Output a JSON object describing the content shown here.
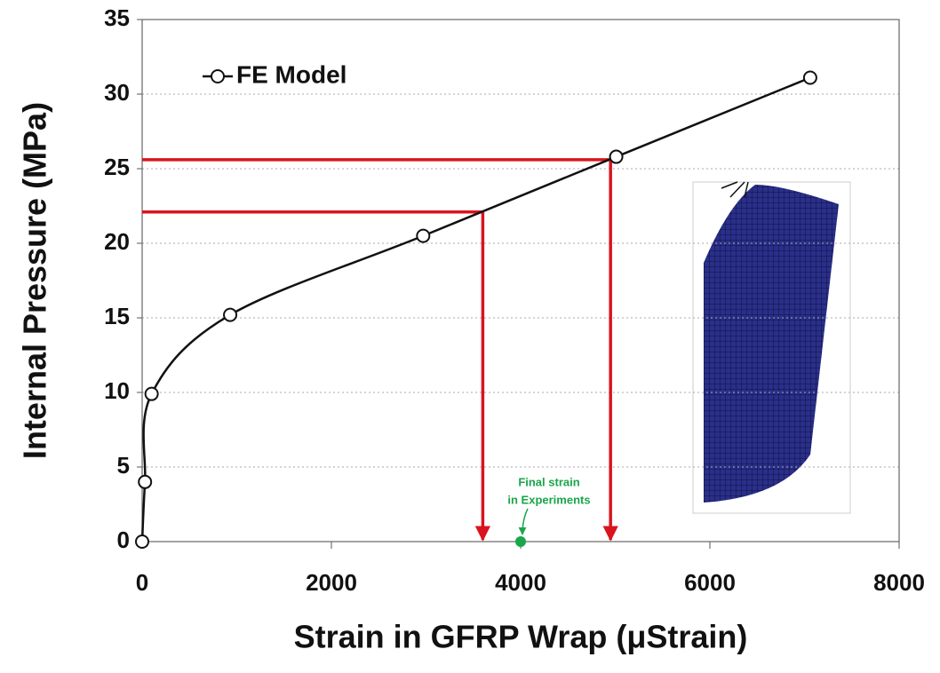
{
  "chart_data": {
    "type": "line",
    "xlabel": "Strain in GFRP Wrap (μStrain)",
    "ylabel": "Internal Pressure (MPa)",
    "xlim": [
      0,
      8000
    ],
    "ylim": [
      0,
      35
    ],
    "xticks": [
      0,
      2000,
      4000,
      6000,
      8000
    ],
    "yticks": [
      0,
      5,
      10,
      15,
      20,
      25,
      30,
      35
    ],
    "grid": true,
    "legend": "upper left",
    "series": [
      {
        "name": "FE Model",
        "color": "#111111",
        "x": [
          0,
          30,
          100,
          930,
          2970,
          5010,
          7060
        ],
        "values": [
          0,
          4,
          9.9,
          15.2,
          20.5,
          25.8,
          31.1
        ]
      }
    ],
    "markers": [
      {
        "x": 3600,
        "y": 22.1,
        "color": "#d9141e"
      },
      {
        "x": 4950,
        "y": 25.6,
        "color": "#d9141e"
      }
    ],
    "experiment": {
      "x": 4000,
      "y": 0,
      "color": "#1aa64a",
      "label": [
        "Final strain",
        "in Experiments"
      ]
    }
  }
}
